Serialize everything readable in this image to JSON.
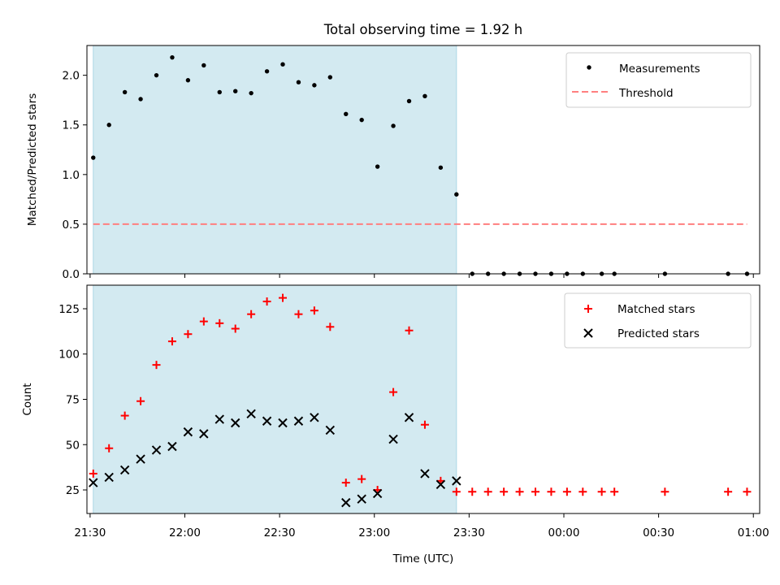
{
  "chart_data": [
    {
      "type": "scatter",
      "title": "Total observing time = 1.92 h",
      "xlabel": "",
      "ylabel": "Matched/Predicted stars",
      "ylim": [
        0,
        2.3
      ],
      "yticks": [
        "0.0",
        "0.5",
        "1.0",
        "1.5",
        "2.0"
      ],
      "xlim": [
        "21:29",
        "01:02"
      ],
      "grid": false,
      "legend_position": "top-right",
      "observing_window": {
        "start": "21:31",
        "end": "23:26",
        "color": "#d3eaf1"
      },
      "series": [
        {
          "name": "Measurements",
          "marker": "dot",
          "color": "#000000",
          "x": [
            "21:31",
            "21:36",
            "21:41",
            "21:46",
            "21:51",
            "21:56",
            "22:01",
            "22:06",
            "22:11",
            "22:16",
            "22:21",
            "22:26",
            "22:31",
            "22:36",
            "22:41",
            "22:46",
            "22:51",
            "22:56",
            "23:01",
            "23:06",
            "23:11",
            "23:16",
            "23:21",
            "23:26",
            "23:31",
            "23:36",
            "23:41",
            "23:46",
            "23:51",
            "23:56",
            "00:01",
            "00:06",
            "00:12",
            "00:16",
            "00:32",
            "00:52",
            "00:58"
          ],
          "y": [
            1.17,
            1.5,
            1.83,
            1.76,
            2.0,
            2.18,
            1.95,
            2.1,
            1.83,
            1.84,
            1.82,
            2.04,
            2.11,
            1.93,
            1.9,
            1.98,
            1.61,
            1.55,
            1.08,
            1.49,
            1.74,
            1.79,
            1.07,
            0.8,
            0,
            0,
            0,
            0,
            0,
            0,
            0,
            0,
            0,
            0,
            0,
            0,
            0
          ]
        },
        {
          "name": "Threshold",
          "style": "dashed",
          "color": "#ff7f7f",
          "x": [
            "21:31",
            "00:58"
          ],
          "y": [
            0.5,
            0.5
          ]
        }
      ]
    },
    {
      "type": "scatter",
      "title": "",
      "xlabel": "Time (UTC)",
      "ylabel": "Count",
      "ylim": [
        12,
        138
      ],
      "yticks": [
        "25",
        "50",
        "75",
        "100",
        "125"
      ],
      "xlim": [
        "21:29",
        "01:02"
      ],
      "xticks": [
        "21:30",
        "22:00",
        "22:30",
        "23:00",
        "23:30",
        "00:00",
        "00:30",
        "01:00"
      ],
      "grid": false,
      "legend_position": "top-right",
      "observing_window": {
        "start": "21:31",
        "end": "23:26",
        "color": "#d3eaf1"
      },
      "series": [
        {
          "name": "Matched stars",
          "marker": "plus",
          "color": "#ff0000",
          "x": [
            "21:31",
            "21:36",
            "21:41",
            "21:46",
            "21:51",
            "21:56",
            "22:01",
            "22:06",
            "22:11",
            "22:16",
            "22:21",
            "22:26",
            "22:31",
            "22:36",
            "22:41",
            "22:46",
            "22:51",
            "22:56",
            "23:01",
            "23:06",
            "23:11",
            "23:16",
            "23:21",
            "23:26",
            "23:31",
            "23:36",
            "23:41",
            "23:46",
            "23:51",
            "23:56",
            "00:01",
            "00:06",
            "00:12",
            "00:16",
            "00:32",
            "00:52",
            "00:58"
          ],
          "y": [
            34,
            48,
            66,
            74,
            94,
            107,
            111,
            118,
            117,
            114,
            122,
            129,
            131,
            122,
            124,
            115,
            29,
            31,
            25,
            79,
            113,
            61,
            30,
            24,
            24,
            24,
            24,
            24,
            24,
            24,
            24,
            24,
            24,
            24,
            24,
            24,
            24
          ]
        },
        {
          "name": "Predicted stars",
          "marker": "x",
          "color": "#000000",
          "x": [
            "21:31",
            "21:36",
            "21:41",
            "21:46",
            "21:51",
            "21:56",
            "22:01",
            "22:06",
            "22:11",
            "22:16",
            "22:21",
            "22:26",
            "22:31",
            "22:36",
            "22:41",
            "22:46",
            "22:51",
            "22:56",
            "23:01",
            "23:06",
            "23:11",
            "23:16",
            "23:21",
            "23:26"
          ],
          "y": [
            29,
            32,
            36,
            42,
            47,
            49,
            57,
            56,
            64,
            62,
            67,
            63,
            62,
            63,
            65,
            58,
            18,
            20,
            23,
            53,
            65,
            34,
            28,
            30
          ]
        }
      ]
    }
  ]
}
